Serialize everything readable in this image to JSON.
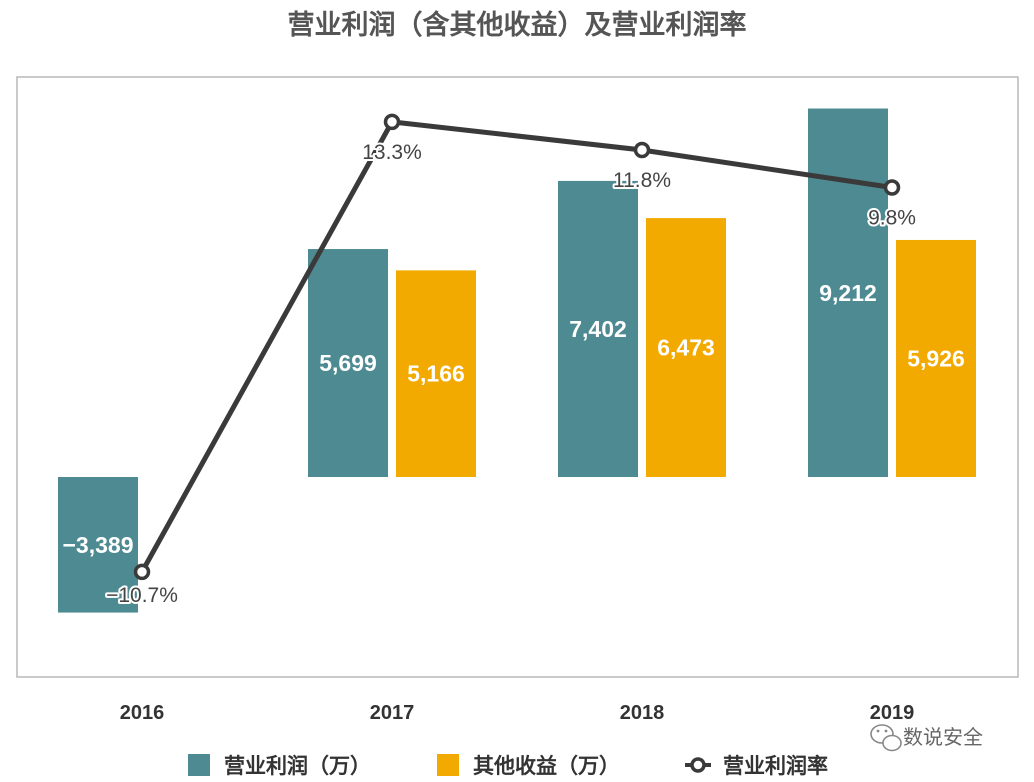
{
  "chart_data": {
    "type": "bar",
    "title": "营业利润（含其他收益）及营业利润率",
    "categories": [
      "2016",
      "2017",
      "2018",
      "2019"
    ],
    "series": [
      {
        "name": "营业利润（万）",
        "type": "bar",
        "color": "#4e8a92",
        "values": [
          -3389,
          5699,
          7402,
          9212
        ],
        "labels": [
          "−3,389",
          "5,699",
          "7,402",
          "9,212"
        ]
      },
      {
        "name": "其他收益（万）",
        "type": "bar",
        "color": "#f2a900",
        "values": [
          null,
          5166,
          6473,
          5926
        ],
        "labels": [
          "",
          "5,166",
          "6,473",
          "5,926"
        ]
      },
      {
        "name": "营业利润率",
        "type": "line",
        "color": "#3a3a3a",
        "values": [
          -10.7,
          13.3,
          11.8,
          9.8
        ],
        "labels": [
          "−10.7%",
          "13.3%",
          "11.8%",
          "9.8%"
        ]
      }
    ],
    "grid": false,
    "legend_position": "bottom"
  },
  "watermark": {
    "text": "数说安全",
    "icon": "wechat-icon"
  }
}
